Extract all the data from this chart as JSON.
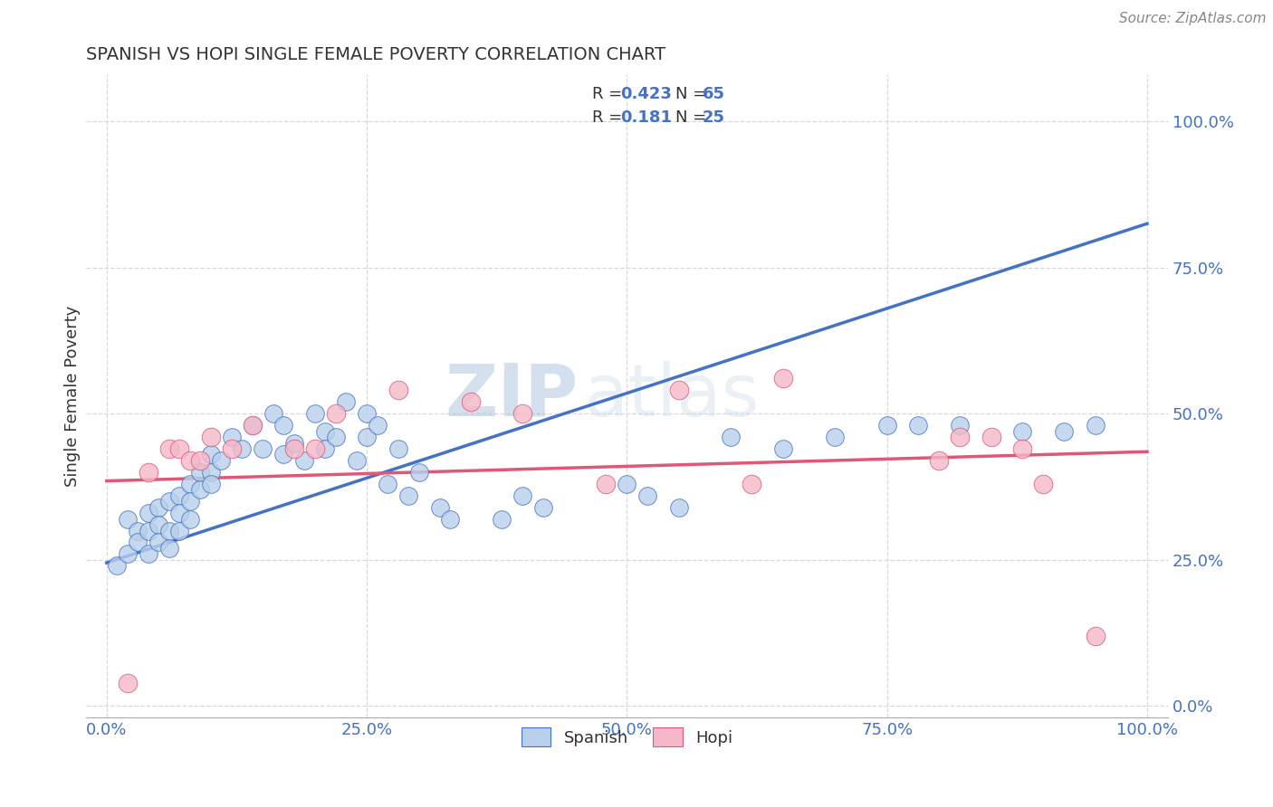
{
  "title": "SPANISH VS HOPI SINGLE FEMALE POVERTY CORRELATION CHART",
  "source": "Source: ZipAtlas.com",
  "ylabel": "Single Female Poverty",
  "watermark_zip": "ZIP",
  "watermark_atlas": "atlas",
  "spanish_r": 0.423,
  "spanish_n": 65,
  "hopi_r": 0.181,
  "hopi_n": 25,
  "xlim": [
    -0.02,
    1.02
  ],
  "ylim": [
    -0.02,
    1.08
  ],
  "xticks": [
    0.0,
    0.25,
    0.5,
    0.75,
    1.0
  ],
  "yticks": [
    0.0,
    0.25,
    0.5,
    0.75,
    1.0
  ],
  "xticklabels": [
    "0.0%",
    "25.0%",
    "50.0%",
    "75.0%",
    "100.0%"
  ],
  "yticklabels": [
    "0.0%",
    "25.0%",
    "50.0%",
    "75.0%",
    "100.0%"
  ],
  "spanish_color": "#b8d0ea",
  "hopi_color": "#f5b8c8",
  "spanish_line_color": "#4472c4",
  "hopi_line_color": "#e05878",
  "background_color": "#ffffff",
  "grid_color": "#d8d8d8",
  "spanish_line_y0": 0.245,
  "spanish_line_y1": 0.825,
  "hopi_line_y0": 0.385,
  "hopi_line_y1": 0.435,
  "spanish_x": [
    0.01,
    0.02,
    0.02,
    0.03,
    0.03,
    0.04,
    0.04,
    0.04,
    0.05,
    0.05,
    0.05,
    0.06,
    0.06,
    0.06,
    0.07,
    0.07,
    0.07,
    0.08,
    0.08,
    0.08,
    0.09,
    0.09,
    0.1,
    0.1,
    0.1,
    0.11,
    0.12,
    0.13,
    0.14,
    0.15,
    0.16,
    0.17,
    0.17,
    0.18,
    0.19,
    0.2,
    0.21,
    0.21,
    0.22,
    0.23,
    0.24,
    0.25,
    0.25,
    0.26,
    0.27,
    0.28,
    0.29,
    0.3,
    0.32,
    0.33,
    0.38,
    0.4,
    0.42,
    0.5,
    0.52,
    0.55,
    0.6,
    0.65,
    0.7,
    0.75,
    0.78,
    0.82,
    0.88,
    0.92,
    0.95
  ],
  "spanish_y": [
    0.24,
    0.32,
    0.26,
    0.3,
    0.28,
    0.33,
    0.3,
    0.26,
    0.34,
    0.31,
    0.28,
    0.35,
    0.3,
    0.27,
    0.36,
    0.33,
    0.3,
    0.38,
    0.35,
    0.32,
    0.4,
    0.37,
    0.43,
    0.4,
    0.38,
    0.42,
    0.46,
    0.44,
    0.48,
    0.44,
    0.5,
    0.48,
    0.43,
    0.45,
    0.42,
    0.5,
    0.47,
    0.44,
    0.46,
    0.52,
    0.42,
    0.5,
    0.46,
    0.48,
    0.38,
    0.44,
    0.36,
    0.4,
    0.34,
    0.32,
    0.32,
    0.36,
    0.34,
    0.38,
    0.36,
    0.34,
    0.46,
    0.44,
    0.46,
    0.48,
    0.48,
    0.48,
    0.47,
    0.47,
    0.48
  ],
  "hopi_x": [
    0.02,
    0.04,
    0.06,
    0.07,
    0.08,
    0.09,
    0.1,
    0.12,
    0.14,
    0.18,
    0.2,
    0.22,
    0.28,
    0.35,
    0.4,
    0.48,
    0.55,
    0.62,
    0.65,
    0.8,
    0.82,
    0.85,
    0.88,
    0.9,
    0.95
  ],
  "hopi_y": [
    0.04,
    0.4,
    0.44,
    0.44,
    0.42,
    0.42,
    0.46,
    0.44,
    0.48,
    0.44,
    0.44,
    0.5,
    0.54,
    0.52,
    0.5,
    0.38,
    0.54,
    0.38,
    0.56,
    0.42,
    0.46,
    0.46,
    0.44,
    0.38,
    0.12
  ]
}
